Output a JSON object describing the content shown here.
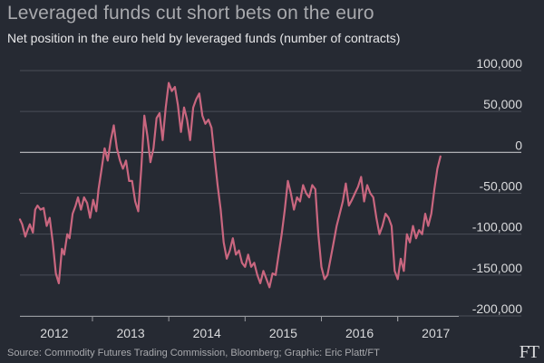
{
  "header": {
    "title": "Leveraged funds cut short bets on the euro",
    "subtitle": "Net position in the euro held by leveraged funds (number of contracts)"
  },
  "footer": {
    "source": "Source: Commodity Futures Trading Commission, Bloomberg; Graphic: Eric Platt/FT",
    "logo_text": "FT"
  },
  "colors": {
    "background": "#262a33",
    "line": "#c9667f",
    "gridline": "#4a4e57",
    "zero_line": "#bfc0c4",
    "axis": "#9a9ca1"
  },
  "chart_data": {
    "type": "line",
    "title": "Leveraged funds cut short bets on the euro",
    "subtitle": "Net position in the euro held by leveraged funds (number of contracts)",
    "xlabel": "",
    "ylabel": "",
    "xlim": [
      2011.55,
      2017.3
    ],
    "ylim": [
      -200000,
      100000
    ],
    "y_ticks": [
      100000,
      50000,
      0,
      -50000,
      -100000,
      -150000,
      -200000
    ],
    "y_tick_labels": [
      "100,000",
      "50,000",
      "0",
      "-50,000",
      "-100,000",
      "-150,000",
      "-200,000"
    ],
    "x_tick_labels": [
      "2012",
      "2013",
      "2014",
      "2015",
      "2016",
      "2017"
    ],
    "x_tick_positions": [
      2012.0,
      2013.0,
      2014.0,
      2015.0,
      2016.0,
      2017.0
    ],
    "y_axis_side": "right",
    "grid": true,
    "legend": "none",
    "series": [
      {
        "x": [
          2011.55,
          2011.58,
          2011.62,
          2011.65,
          2011.68,
          2011.72,
          2011.75,
          2011.78,
          2011.82,
          2011.86,
          2011.9,
          2011.94,
          2011.98,
          2012.02,
          2012.06,
          2012.1,
          2012.13,
          2012.17,
          2012.2,
          2012.24,
          2012.28,
          2012.31,
          2012.35,
          2012.39,
          2012.43,
          2012.47,
          2012.51,
          2012.55,
          2012.58,
          2012.62,
          2012.66,
          2012.7,
          2012.74,
          2012.78,
          2012.82,
          2012.86,
          2012.9,
          2012.94,
          2012.98,
          2013.02,
          2013.06,
          2013.1,
          2013.14,
          2013.18,
          2013.22,
          2013.26,
          2013.3,
          2013.34,
          2013.38,
          2013.42,
          2013.46,
          2013.5,
          2013.54,
          2013.58,
          2013.62,
          2013.66,
          2013.7,
          2013.74,
          2013.78,
          2013.82,
          2013.86,
          2013.9,
          2013.94,
          2013.98,
          2014.02,
          2014.06,
          2014.1,
          2014.14,
          2014.18,
          2014.22,
          2014.26,
          2014.3,
          2014.34,
          2014.38,
          2014.42,
          2014.46,
          2014.5,
          2014.54,
          2014.58,
          2014.62,
          2014.66,
          2014.7,
          2014.74,
          2014.78,
          2014.82,
          2014.86,
          2014.9,
          2014.94,
          2014.98,
          2015.02,
          2015.06,
          2015.1,
          2015.14,
          2015.18,
          2015.22,
          2015.26,
          2015.3,
          2015.34,
          2015.38,
          2015.42,
          2015.46,
          2015.5,
          2015.54,
          2015.58,
          2015.62,
          2015.66,
          2015.7,
          2015.74,
          2015.78,
          2015.82,
          2015.86,
          2015.9,
          2015.94,
          2015.98,
          2016.02,
          2016.06,
          2016.1,
          2016.14,
          2016.18,
          2016.22,
          2016.26,
          2016.3,
          2016.34,
          2016.38,
          2016.42,
          2016.46,
          2016.5,
          2016.54,
          2016.58,
          2016.62,
          2016.66,
          2016.7,
          2016.74,
          2016.78,
          2016.82,
          2016.86,
          2016.9,
          2016.94,
          2016.98,
          2017.02,
          2017.06
        ],
        "y": [
          -82000,
          -88000,
          -103000,
          -95000,
          -88000,
          -98000,
          -70000,
          -65000,
          -70000,
          -68000,
          -90000,
          -80000,
          -110000,
          -148000,
          -160000,
          -118000,
          -125000,
          -100000,
          -105000,
          -75000,
          -65000,
          -55000,
          -70000,
          -55000,
          -62000,
          -80000,
          -58000,
          -72000,
          -45000,
          -20000,
          5000,
          -10000,
          15000,
          33000,
          5000,
          -10000,
          -20000,
          -10000,
          -35000,
          -35000,
          -60000,
          -72000,
          -20000,
          45000,
          20000,
          -12000,
          5000,
          42000,
          48000,
          15000,
          55000,
          85000,
          75000,
          80000,
          58000,
          25000,
          55000,
          40000,
          15000,
          55000,
          65000,
          72000,
          45000,
          35000,
          40000,
          30000,
          -5000,
          -40000,
          -70000,
          -110000,
          -130000,
          -120000,
          -105000,
          -125000,
          -120000,
          -135000,
          -140000,
          -125000,
          -140000,
          -135000,
          -150000,
          -160000,
          -145000,
          -155000,
          -165000,
          -148000,
          -150000,
          -125000,
          -100000,
          -70000,
          -35000,
          -50000,
          -70000,
          -55000,
          -60000,
          -40000,
          -50000,
          -55000,
          -40000,
          -45000,
          -100000,
          -140000,
          -155000,
          -150000,
          -130000,
          -110000,
          -90000,
          -75000,
          -60000,
          -38000,
          -65000,
          -58000,
          -50000,
          -42000,
          -30000,
          -60000,
          -40000,
          -50000,
          -55000,
          -80000,
          -100000,
          -90000,
          -75000,
          -80000,
          -90000,
          -145000,
          -155000,
          -130000,
          -145000,
          -100000,
          -110000,
          -90000,
          -105000,
          -95000,
          -100000,
          -75000,
          -90000,
          -75000,
          -45000,
          -20000,
          -5000
        ]
      }
    ]
  }
}
